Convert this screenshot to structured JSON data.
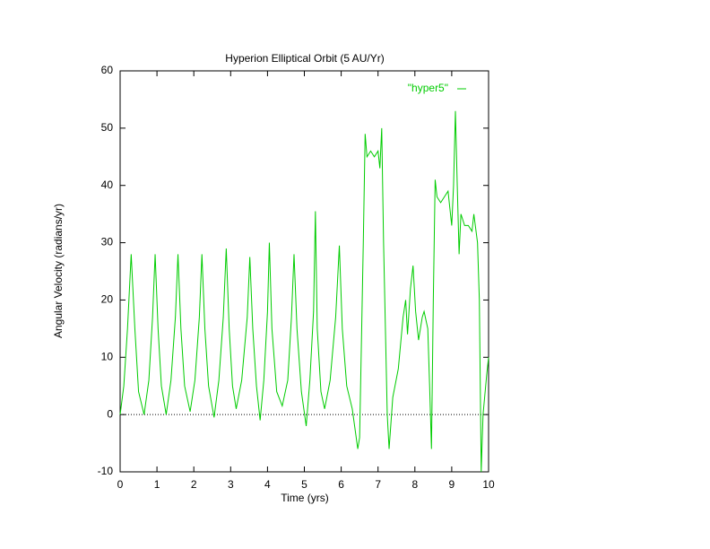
{
  "chart_data": {
    "type": "line",
    "title": "Hyperion Elliptical Orbit (5 AU/Yr)",
    "xlabel": "Time (yrs)",
    "ylabel": "Angular Velocity (radians/yr)",
    "xlim": [
      0,
      10
    ],
    "xticks": [
      0,
      1,
      2,
      3,
      4,
      5,
      6,
      7,
      8,
      9,
      10
    ],
    "ylim": [
      -10,
      60
    ],
    "yticks": [
      -10,
      0,
      10,
      20,
      30,
      40,
      50,
      60
    ],
    "legend": "top-right",
    "series": [
      {
        "name": "\"hyper5\"",
        "color": "#00cc00",
        "x": [
          0,
          0.1,
          0.2,
          0.3,
          0.4,
          0.5,
          0.65,
          0.78,
          0.88,
          0.95,
          1.03,
          1.12,
          1.25,
          1.38,
          1.5,
          1.57,
          1.65,
          1.75,
          1.9,
          2.03,
          2.15,
          2.22,
          2.3,
          2.4,
          2.55,
          2.68,
          2.8,
          2.88,
          2.96,
          3.05,
          3.15,
          3.3,
          3.45,
          3.52,
          3.6,
          3.7,
          3.8,
          3.9,
          4.0,
          4.05,
          4.12,
          4.25,
          4.4,
          4.55,
          4.65,
          4.72,
          4.8,
          4.92,
          5.05,
          5.15,
          5.25,
          5.3,
          5.35,
          5.45,
          5.55,
          5.7,
          5.85,
          5.95,
          6.03,
          6.15,
          6.3,
          6.45,
          6.5,
          6.6,
          6.65,
          6.7,
          6.8,
          6.9,
          7.0,
          7.05,
          7.1,
          7.15,
          7.25,
          7.3,
          7.4,
          7.55,
          7.68,
          7.75,
          7.8,
          7.88,
          7.95,
          8.02,
          8.1,
          8.2,
          8.25,
          8.35,
          8.4,
          8.45,
          8.5,
          8.55,
          8.6,
          8.7,
          8.8,
          8.9,
          8.95,
          9.0,
          9.05,
          9.1,
          9.15,
          9.2,
          9.25,
          9.35,
          9.45,
          9.55,
          9.6,
          9.7,
          9.75,
          9.8,
          9.85,
          9.95,
          10
        ],
        "values": [
          0,
          5,
          15,
          28,
          15,
          4,
          0,
          6,
          17,
          28,
          15,
          5,
          0,
          6,
          17,
          28,
          15,
          5,
          0.5,
          6,
          17,
          28,
          15,
          5,
          -0.5,
          6,
          17,
          29,
          15,
          5,
          1,
          6,
          17,
          27.5,
          15,
          5,
          -1,
          6,
          18,
          30,
          15,
          4,
          1.5,
          6,
          17,
          28,
          15,
          4,
          -2,
          6,
          18,
          35.5,
          15,
          4,
          1,
          6,
          17,
          29.5,
          15,
          5,
          1,
          -6,
          -4,
          30,
          49,
          45,
          46,
          45,
          46,
          43,
          50,
          30,
          0,
          -6,
          3,
          8,
          17,
          20,
          14,
          22,
          26,
          18,
          13,
          17,
          18,
          15,
          5,
          -6,
          20,
          41,
          38,
          37,
          38,
          39,
          36,
          33,
          40,
          53,
          40,
          28,
          35,
          33,
          33,
          32,
          35,
          30,
          20,
          -10,
          0,
          7,
          10
        ]
      }
    ]
  }
}
